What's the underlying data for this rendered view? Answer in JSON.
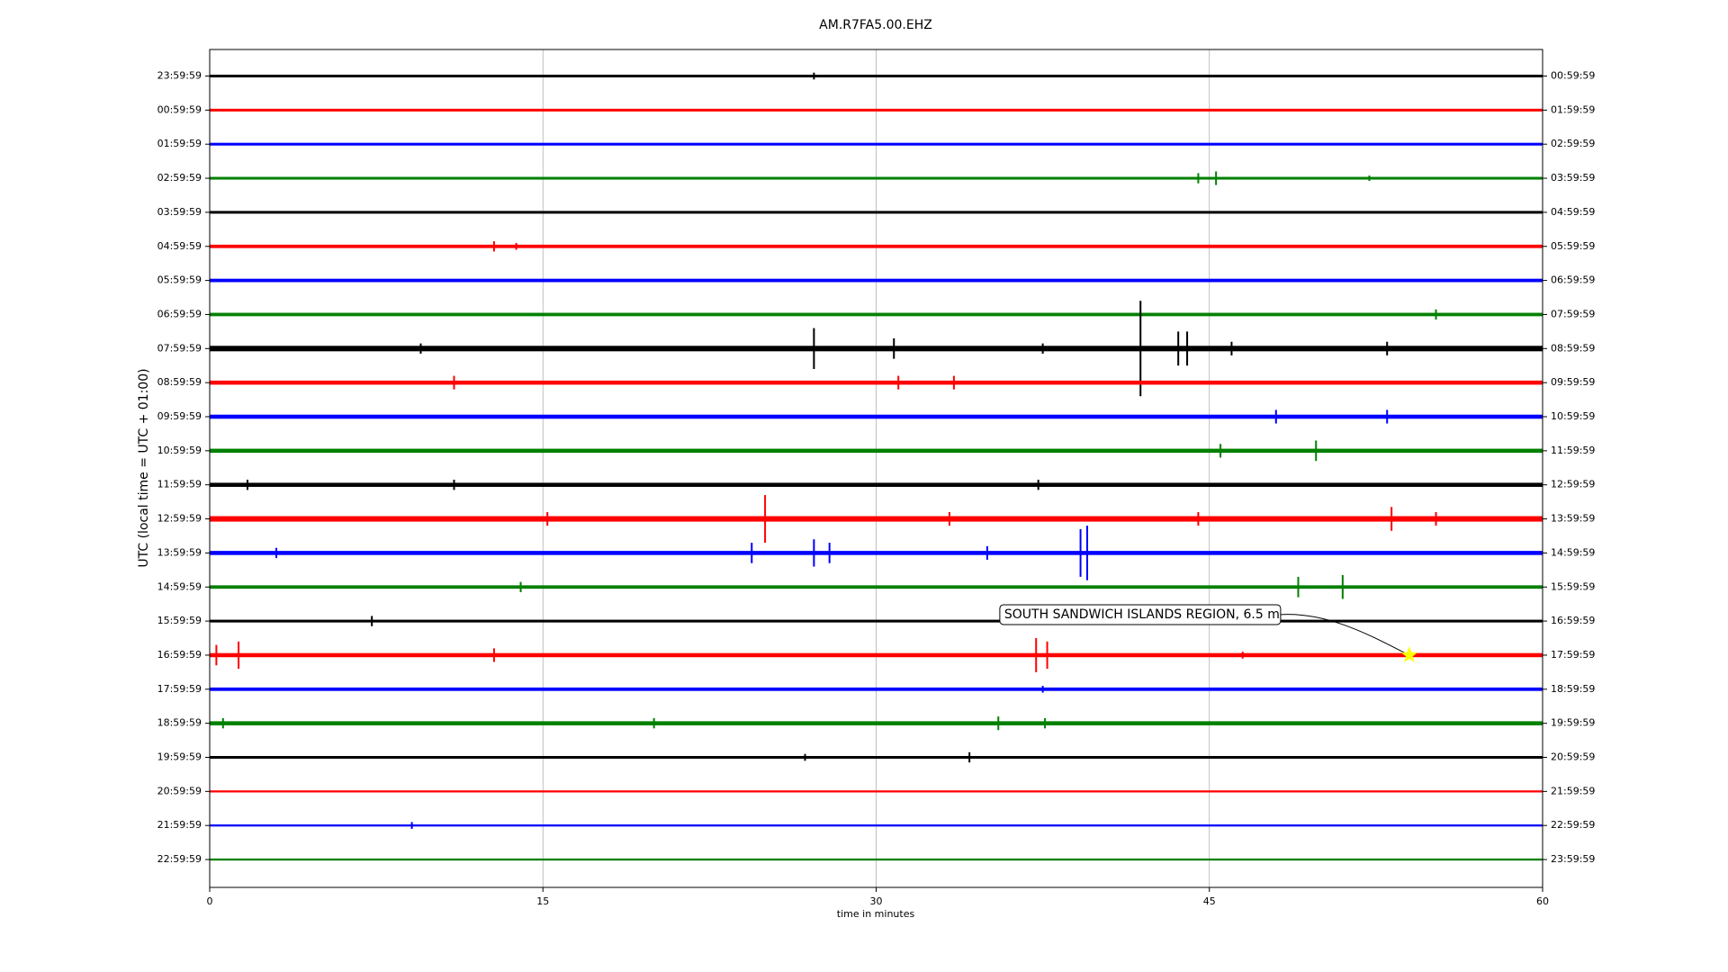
{
  "chart_data": {
    "type": "dayplot",
    "title": "AM.R7FA5.00.EHZ",
    "x_label": "time in minutes",
    "y_label": "UTC (local time = UTC + 01:00)",
    "xlim": [
      0,
      60
    ],
    "xticks": [
      0,
      15,
      30,
      45,
      60
    ],
    "grid": true,
    "categories": [
      "23:59:59",
      "00:59:59",
      "01:59:59",
      "02:59:59",
      "03:59:59",
      "04:59:59",
      "05:59:59",
      "06:59:59",
      "07:59:59",
      "08:59:59",
      "09:59:59",
      "10:59:59",
      "11:59:59",
      "12:59:59",
      "13:59:59",
      "14:59:59",
      "15:59:59",
      "16:59:59",
      "17:59:59",
      "18:59:59",
      "19:59:59",
      "20:59:59",
      "21:59:59",
      "22:59:59"
    ],
    "right_categories": [
      "00:59:59",
      "01:59:59",
      "02:59:59",
      "03:59:59",
      "04:59:59",
      "05:59:59",
      "06:59:59",
      "07:59:59",
      "08:59:59",
      "09:59:59",
      "10:59:59",
      "11:59:59",
      "12:59:59",
      "13:59:59",
      "14:59:59",
      "15:59:59",
      "16:59:59",
      "17:59:59",
      "18:59:59",
      "19:59:59",
      "20:59:59",
      "21:59:59",
      "22:59:59",
      "23:59:59"
    ],
    "series": [
      {
        "color": "#000000",
        "noise": 0.04,
        "events": [
          {
            "minute": 27.2,
            "amplitude": 0.1
          }
        ]
      },
      {
        "color": "#ff0000",
        "noise": 0.04,
        "events": []
      },
      {
        "color": "#0000ff",
        "noise": 0.04,
        "events": []
      },
      {
        "color": "#008000",
        "noise": 0.04,
        "events": [
          {
            "minute": 44.5,
            "amplitude": 0.15
          },
          {
            "minute": 45.3,
            "amplitude": 0.2
          },
          {
            "minute": 52.2,
            "amplitude": 0.08
          }
        ]
      },
      {
        "color": "#000000",
        "noise": 0.04,
        "events": []
      },
      {
        "color": "#ff0000",
        "noise": 0.05,
        "events": [
          {
            "minute": 12.8,
            "amplitude": 0.15
          },
          {
            "minute": 13.8,
            "amplitude": 0.1
          }
        ]
      },
      {
        "color": "#0000ff",
        "noise": 0.05,
        "events": []
      },
      {
        "color": "#008000",
        "noise": 0.05,
        "events": [
          {
            "minute": 55.2,
            "amplitude": 0.15
          }
        ]
      },
      {
        "color": "#000000",
        "noise": 0.08,
        "events": [
          {
            "minute": 9.5,
            "amplitude": 0.15
          },
          {
            "minute": 27.2,
            "amplitude": 0.6
          },
          {
            "minute": 30.8,
            "amplitude": 0.3
          },
          {
            "minute": 37.5,
            "amplitude": 0.15
          },
          {
            "minute": 41.9,
            "amplitude": 1.4
          },
          {
            "minute": 43.6,
            "amplitude": 0.5
          },
          {
            "minute": 44.0,
            "amplitude": 0.5
          },
          {
            "minute": 46.0,
            "amplitude": 0.2
          },
          {
            "minute": 53.0,
            "amplitude": 0.2
          }
        ]
      },
      {
        "color": "#ff0000",
        "noise": 0.06,
        "events": [
          {
            "minute": 11.0,
            "amplitude": 0.2
          },
          {
            "minute": 31.0,
            "amplitude": 0.2
          },
          {
            "minute": 33.5,
            "amplitude": 0.2
          }
        ]
      },
      {
        "color": "#0000ff",
        "noise": 0.06,
        "events": [
          {
            "minute": 48.0,
            "amplitude": 0.2
          },
          {
            "minute": 53.0,
            "amplitude": 0.2
          }
        ]
      },
      {
        "color": "#008000",
        "noise": 0.06,
        "events": [
          {
            "minute": 45.5,
            "amplitude": 0.2
          },
          {
            "minute": 49.8,
            "amplitude": 0.3
          }
        ]
      },
      {
        "color": "#000000",
        "noise": 0.06,
        "events": [
          {
            "minute": 1.7,
            "amplitude": 0.15
          },
          {
            "minute": 11.0,
            "amplitude": 0.15
          },
          {
            "minute": 37.3,
            "amplitude": 0.15
          }
        ]
      },
      {
        "color": "#ff0000",
        "noise": 0.08,
        "events": [
          {
            "minute": 15.2,
            "amplitude": 0.2
          },
          {
            "minute": 25.0,
            "amplitude": 0.7
          },
          {
            "minute": 33.3,
            "amplitude": 0.2
          },
          {
            "minute": 44.5,
            "amplitude": 0.2
          },
          {
            "minute": 53.2,
            "amplitude": 0.35
          },
          {
            "minute": 55.2,
            "amplitude": 0.2
          }
        ]
      },
      {
        "color": "#0000ff",
        "noise": 0.06,
        "events": [
          {
            "minute": 3.0,
            "amplitude": 0.15
          },
          {
            "minute": 24.4,
            "amplitude": 0.3
          },
          {
            "minute": 27.2,
            "amplitude": 0.4
          },
          {
            "minute": 27.9,
            "amplitude": 0.3
          },
          {
            "minute": 35.0,
            "amplitude": 0.2
          },
          {
            "minute": 39.2,
            "amplitude": 0.7
          },
          {
            "minute": 39.5,
            "amplitude": 0.8
          }
        ]
      },
      {
        "color": "#008000",
        "noise": 0.05,
        "events": [
          {
            "minute": 14.0,
            "amplitude": 0.15
          },
          {
            "minute": 49.0,
            "amplitude": 0.3
          },
          {
            "minute": 51.0,
            "amplitude": 0.35
          }
        ]
      },
      {
        "color": "#000000",
        "noise": 0.04,
        "events": [
          {
            "minute": 7.3,
            "amplitude": 0.15
          }
        ]
      },
      {
        "color": "#ff0000",
        "noise": 0.06,
        "events": [
          {
            "minute": 0.3,
            "amplitude": 0.3
          },
          {
            "minute": 1.3,
            "amplitude": 0.4
          },
          {
            "minute": 12.8,
            "amplitude": 0.2
          },
          {
            "minute": 37.2,
            "amplitude": 0.5
          },
          {
            "minute": 37.7,
            "amplitude": 0.4
          },
          {
            "minute": 46.5,
            "amplitude": 0.1
          }
        ]
      },
      {
        "color": "#0000ff",
        "noise": 0.05,
        "events": [
          {
            "minute": 37.5,
            "amplitude": 0.1
          }
        ]
      },
      {
        "color": "#008000",
        "noise": 0.06,
        "events": [
          {
            "minute": 0.6,
            "amplitude": 0.15
          },
          {
            "minute": 20.0,
            "amplitude": 0.15
          },
          {
            "minute": 35.5,
            "amplitude": 0.2
          },
          {
            "minute": 37.6,
            "amplitude": 0.15
          }
        ]
      },
      {
        "color": "#000000",
        "noise": 0.04,
        "events": [
          {
            "minute": 26.8,
            "amplitude": 0.1
          },
          {
            "minute": 34.2,
            "amplitude": 0.15
          }
        ]
      },
      {
        "color": "#ff0000",
        "noise": 0.03,
        "events": []
      },
      {
        "color": "#0000ff",
        "noise": 0.03,
        "events": [
          {
            "minute": 9.1,
            "amplitude": 0.1
          }
        ]
      },
      {
        "color": "#008000",
        "noise": 0.03,
        "events": []
      }
    ],
    "annotation": {
      "text": "SOUTH SANDWICH ISLANDS REGION, 6.5 m",
      "row": 17,
      "minute": 54.0,
      "marker_color": "#ffff00"
    }
  }
}
